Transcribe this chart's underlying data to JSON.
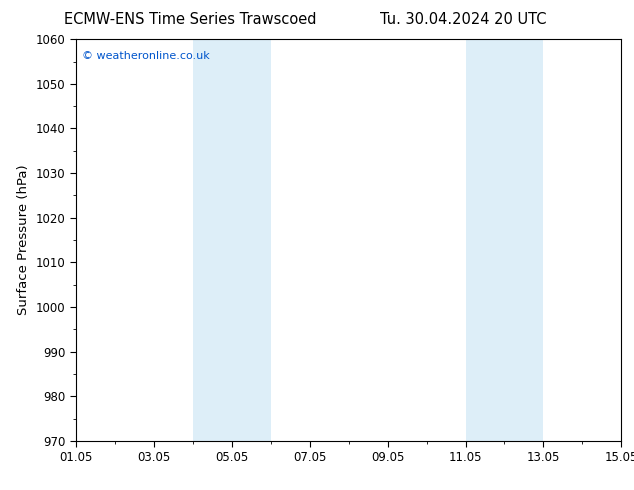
{
  "title_left": "ECMW-ENS Time Series Trawscoed",
  "title_right": "Tu. 30.04.2024 20 UTC",
  "ylabel": "Surface Pressure (hPa)",
  "xlabel": "",
  "ylim": [
    970,
    1060
  ],
  "yticks": [
    970,
    980,
    990,
    1000,
    1010,
    1020,
    1030,
    1040,
    1050,
    1060
  ],
  "xlim_start": 0,
  "xlim_end": 14,
  "xtick_positions": [
    0,
    2,
    4,
    6,
    8,
    10,
    12,
    14
  ],
  "xtick_labels": [
    "01.05",
    "03.05",
    "05.05",
    "07.05",
    "09.05",
    "11.05",
    "13.05",
    "15.05"
  ],
  "shaded_bands": [
    {
      "xmin": 3.0,
      "xmax": 5.0,
      "color": "#ddeef8"
    },
    {
      "xmin": 10.0,
      "xmax": 12.0,
      "color": "#ddeef8"
    }
  ],
  "copyright_text": "© weatheronline.co.uk",
  "copyright_color": "#0055cc",
  "background_color": "#ffffff",
  "plot_bg_color": "#ffffff",
  "title_fontsize": 10.5,
  "tick_fontsize": 8.5,
  "ylabel_fontsize": 9.5
}
